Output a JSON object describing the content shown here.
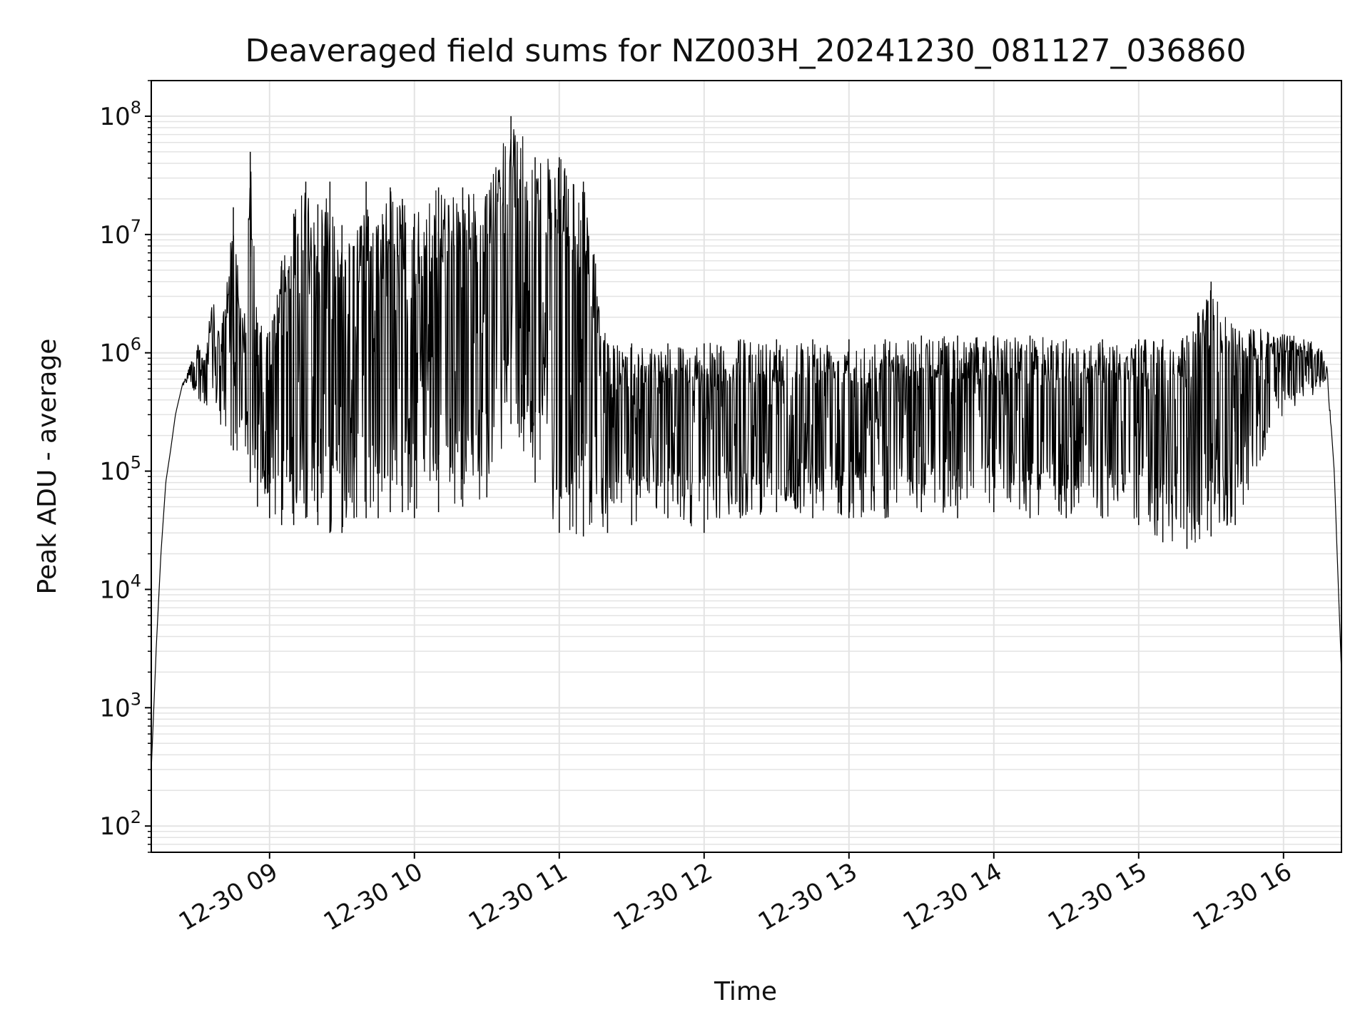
{
  "chart_data": {
    "type": "line",
    "title": "Deaveraged field sums for NZ003H_20241230_081127_036860",
    "xlabel": "Time",
    "ylabel": "Peak ADU - average",
    "x_scale": "time",
    "y_scale": "log",
    "xlim": [
      "2024-12-30 08:11",
      "2024-12-30 16:24"
    ],
    "ylim": [
      60,
      200000000
    ],
    "x_ticks": [
      "12-30 09",
      "12-30 10",
      "12-30 11",
      "12-30 12",
      "12-30 13",
      "12-30 14",
      "12-30 15",
      "12-30 16"
    ],
    "y_ticks": [
      {
        "base": "10",
        "exp": "2",
        "value": 100
      },
      {
        "base": "10",
        "exp": "3",
        "value": 1000
      },
      {
        "base": "10",
        "exp": "4",
        "value": 10000
      },
      {
        "base": "10",
        "exp": "5",
        "value": 100000
      },
      {
        "base": "10",
        "exp": "6",
        "value": 1000000
      },
      {
        "base": "10",
        "exp": "7",
        "value": 10000000
      },
      {
        "base": "10",
        "exp": "8",
        "value": 100000000
      }
    ],
    "grid": "major and minor",
    "legend": "none",
    "line_color": "#000000",
    "grid_color": "#e3e3e3",
    "series": [
      {
        "x": [
          "2024-12-30 08:11",
          "2024-12-30 08:13",
          "2024-12-30 08:15",
          "2024-12-30 08:17",
          "2024-12-30 08:19",
          "2024-12-30 08:21",
          "2024-12-30 08:24",
          "2024-12-30 08:27",
          "2024-12-30 08:30",
          "2024-12-30 08:33",
          "2024-12-30 08:36",
          "2024-12-30 08:40",
          "2024-12-30 08:45",
          "2024-12-30 08:50",
          "2024-12-30 08:52",
          "2024-12-30 08:55",
          "2024-12-30 09:00",
          "2024-12-30 09:05",
          "2024-12-30 09:10",
          "2024-12-30 09:15",
          "2024-12-30 09:20",
          "2024-12-30 09:25",
          "2024-12-30 09:30",
          "2024-12-30 09:35",
          "2024-12-30 09:40",
          "2024-12-30 09:45",
          "2024-12-30 09:50",
          "2024-12-30 09:55",
          "2024-12-30 10:00",
          "2024-12-30 10:10",
          "2024-12-30 10:20",
          "2024-12-30 10:30",
          "2024-12-30 10:40",
          "2024-12-30 10:50",
          "2024-12-30 11:00",
          "2024-12-30 11:10",
          "2024-12-30 11:20",
          "2024-12-30 11:30",
          "2024-12-30 11:45",
          "2024-12-30 12:00",
          "2024-12-30 12:15",
          "2024-12-30 12:30",
          "2024-12-30 12:45",
          "2024-12-30 13:00",
          "2024-12-30 13:15",
          "2024-12-30 13:30",
          "2024-12-30 13:45",
          "2024-12-30 14:00",
          "2024-12-30 14:15",
          "2024-12-30 14:30",
          "2024-12-30 14:45",
          "2024-12-30 15:00",
          "2024-12-30 15:10",
          "2024-12-30 15:20",
          "2024-12-30 15:30",
          "2024-12-30 15:40",
          "2024-12-30 15:50",
          "2024-12-30 16:00",
          "2024-12-30 16:10",
          "2024-12-30 16:15",
          "2024-12-30 16:18",
          "2024-12-30 16:21",
          "2024-12-30 16:24"
        ],
        "upper": [
          300,
          3000,
          20000,
          80000,
          150000,
          300000,
          550000,
          800000,
          1200000,
          1000000,
          3000000,
          1500000,
          17000000,
          2000000,
          50000000,
          1800000,
          1500000,
          6000000,
          15000000,
          28000000,
          18000000,
          28000000,
          12000000,
          8000000,
          28000000,
          12000000,
          25000000,
          20000000,
          15000000,
          25000000,
          25000000,
          22000000,
          100000000,
          45000000,
          45000000,
          28000000,
          1200000,
          1200000,
          1200000,
          1200000,
          1300000,
          1300000,
          1300000,
          1300000,
          1300000,
          1400000,
          1400000,
          1400000,
          1400000,
          1300000,
          1300000,
          1300000,
          1300000,
          1400000,
          4000000,
          1600000,
          1600000,
          1500000,
          1300000,
          1200000,
          800000,
          100000,
          2000
        ],
        "lower": [
          300,
          3000,
          20000,
          80000,
          150000,
          300000,
          500000,
          600000,
          350000,
          300000,
          250000,
          200000,
          150000,
          130000,
          80000,
          50000,
          40000,
          35000,
          35000,
          40000,
          35000,
          30000,
          30000,
          40000,
          40000,
          40000,
          45000,
          45000,
          40000,
          45000,
          50000,
          60000,
          250000,
          80000,
          30000,
          28000,
          30000,
          35000,
          40000,
          30000,
          40000,
          45000,
          40000,
          40000,
          40000,
          45000,
          40000,
          45000,
          40000,
          40000,
          40000,
          35000,
          25000,
          22000,
          28000,
          35000,
          100000,
          300000,
          400000,
          500000,
          600000,
          100000,
          2000
        ]
      }
    ]
  }
}
